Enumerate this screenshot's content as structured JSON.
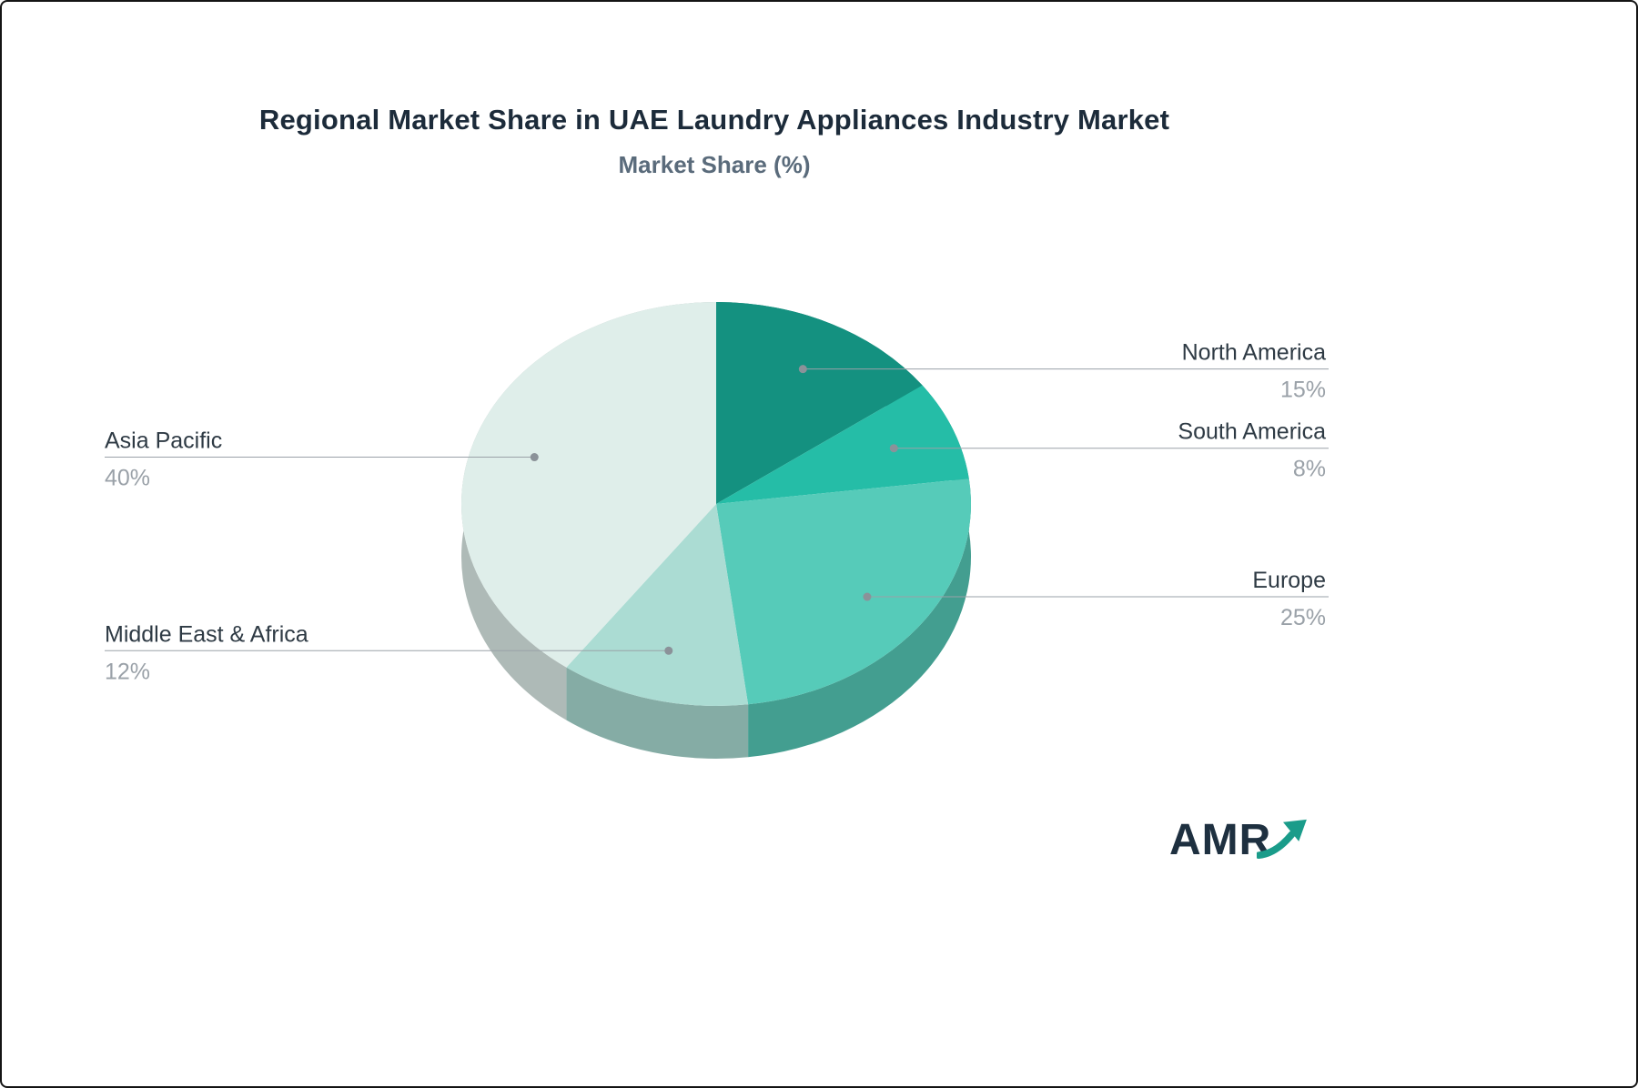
{
  "branding": {
    "logo_text": "AMR",
    "logo_color": "#1e3040",
    "arrow_color": "#1a9c8a"
  },
  "chart_data": {
    "type": "pie",
    "title": "Regional Market Share in UAE Laundry Appliances Industry Market",
    "subtitle": "Market Share (%)",
    "unit": "%",
    "direction": "clockwise",
    "start_angle_deg": 0,
    "effect": "3d",
    "legend_position": "callout-labels",
    "slices": [
      {
        "label": "North America",
        "value": 15,
        "color": "#149180",
        "callout_side": "right"
      },
      {
        "label": "South America",
        "value": 8,
        "color": "#25bda7",
        "callout_side": "right"
      },
      {
        "label": "Europe",
        "value": 25,
        "color": "#56cbb9",
        "callout_side": "right"
      },
      {
        "label": "Middle East & Africa",
        "value": 12,
        "color": "#abdcd3",
        "callout_side": "left"
      },
      {
        "label": "Asia Pacific",
        "value": 40,
        "color": "#dfeeea",
        "callout_side": "left"
      }
    ],
    "label_text_color": "#2e3a44",
    "value_text_color": "#9aa1a8",
    "callout_line_color": "#9aa1a8"
  }
}
